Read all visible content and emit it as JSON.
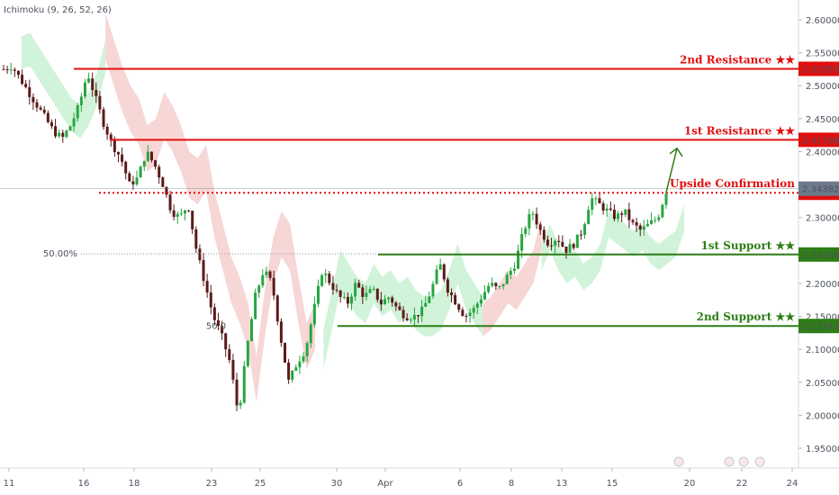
{
  "indicator_label": "Ichimoku (9, 26, 52, 26)",
  "colors": {
    "resistance": "#e10f0f",
    "support": "#2e7d16",
    "bull": "#26a641",
    "bear": "#5b1a1a",
    "cloud_bull": "#c6f0cf",
    "cloud_bear": "#f5cccc",
    "current_price": "#6c7a8a"
  },
  "chart_data": {
    "type": "candlestick",
    "ylim": [
      1.92,
      2.63
    ],
    "y_ticks": [
      "2.60000",
      "2.55000",
      "2.50000",
      "2.45000",
      "2.40000",
      "2.35000",
      "2.30000",
      "2.25000",
      "2.20000",
      "2.15000",
      "2.10000",
      "2.05000",
      "2.00000",
      "1.95000"
    ],
    "x_ticks": [
      "11",
      "16",
      "18",
      "23",
      "25",
      "30",
      "Apr",
      "6",
      "8",
      "13",
      "15",
      "20",
      "22",
      "24"
    ],
    "fib_label": "50.00%",
    "fib_label_2": "50.0",
    "current_price": {
      "label": "2.34382",
      "value": 2.34382
    },
    "levels": [
      {
        "name": "2nd Resistance ★★",
        "value": 2.52555,
        "label": "2.52555",
        "kind": "resistance",
        "style": "solid"
      },
      {
        "name": "1st Resistance ★★",
        "value": 2.4179,
        "label": "2.41790",
        "kind": "resistance",
        "style": "solid"
      },
      {
        "name": "Upside Confirmation",
        "value": 2.3375,
        "label": "2.33750",
        "kind": "resistance",
        "style": "dotted"
      },
      {
        "name": "1st Support ★★",
        "value": 2.24386,
        "label": "2.24386",
        "kind": "support",
        "style": "solid"
      },
      {
        "name": "2nd Support ★★",
        "value": 2.13543,
        "label": "2.13543",
        "kind": "support",
        "style": "solid"
      }
    ],
    "fib_level_value": 2.245,
    "arrow": {
      "from": 2.338,
      "to": 2.405
    },
    "price_path": [
      2.525,
      2.53,
      2.51,
      2.49,
      2.47,
      2.45,
      2.43,
      2.42,
      2.44,
      2.47,
      2.52,
      2.48,
      2.44,
      2.41,
      2.39,
      2.35,
      2.36,
      2.4,
      2.38,
      2.35,
      2.31,
      2.3,
      2.32,
      2.25,
      2.2,
      2.15,
      2.12,
      2.08,
      2.0,
      2.1,
      2.18,
      2.22,
      2.2,
      2.12,
      2.05,
      2.08,
      2.1,
      2.16,
      2.22,
      2.2,
      2.18,
      2.17,
      2.2,
      2.18,
      2.19,
      2.17,
      2.18,
      2.16,
      2.15,
      2.15,
      2.16,
      2.19,
      2.23,
      2.19,
      2.17,
      2.15,
      2.16,
      2.18,
      2.2,
      2.19,
      2.21,
      2.23,
      2.28,
      2.31,
      2.28,
      2.26,
      2.27,
      2.25,
      2.26,
      2.28,
      2.33,
      2.32,
      2.31,
      2.3,
      2.31,
      2.29,
      2.28,
      2.29,
      2.3,
      2.34
    ]
  }
}
